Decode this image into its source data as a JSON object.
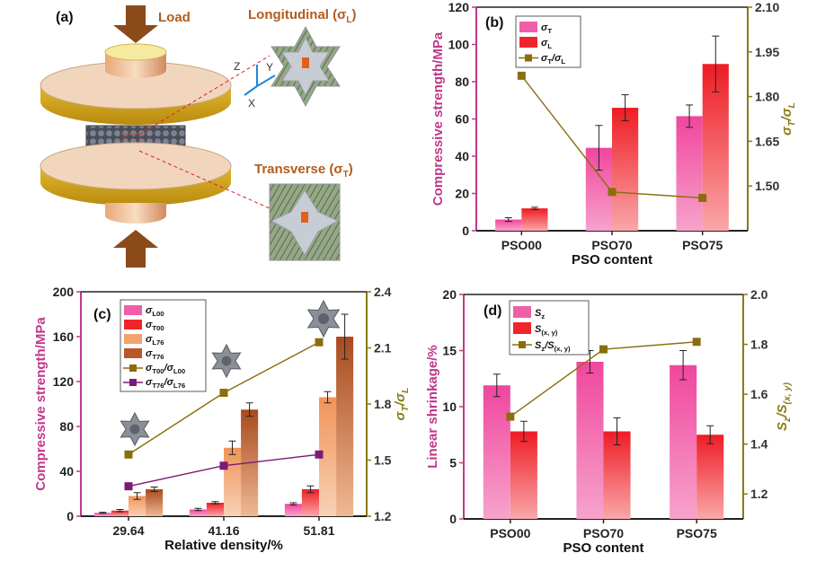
{
  "colors": {
    "magenta": "#c0388a",
    "olive": "#8a7a14",
    "pink_bar": "#ef5fa7",
    "red_bar": "#f1242c",
    "orange_bar": "#f3a36c",
    "brown_bar": "#b8582a",
    "marker_olive": "#8b6d0e",
    "marker_purple": "#7b1b78",
    "load_arrow": "#8a4a1a"
  },
  "panel_a": {
    "letter": "(a)",
    "load_label": "Load",
    "longitudinal_label": "Longitudinal (σ",
    "longitudinal_sub": "L",
    "transverse_label": "Transverse (σ",
    "transverse_sub": "T",
    "close_paren": ")",
    "axis_z": "Z",
    "axis_y": "Y",
    "axis_x": "X"
  },
  "chart_data": [
    {
      "id": "b",
      "letter": "(b)",
      "type": "bar",
      "categories": [
        "PSO00",
        "PSO70",
        "PSO75"
      ],
      "xlabel": "PSO content",
      "ylabel": "Compressive strength/MPa",
      "ylim": [
        0,
        120
      ],
      "yticks": [
        0,
        20,
        40,
        60,
        80,
        100,
        120
      ],
      "y2label_main": "σ",
      "y2label_sub1": "T",
      "y2label_sep": "/σ",
      "y2label_sub2": "L",
      "y2lim": [
        1.35,
        2.1
      ],
      "y2ticks": [
        "1.50",
        "1.65",
        "1.80",
        "1.95",
        "2.10"
      ],
      "y2tick_values": [
        1.5,
        1.65,
        1.8,
        1.95,
        2.1
      ],
      "series": [
        {
          "name": "σT",
          "label_main": "σ",
          "label_sub": "T",
          "values": [
            6,
            44.5,
            61.5
          ],
          "errors": [
            1,
            12,
            6
          ]
        },
        {
          "name": "σL",
          "label_main": "σ",
          "label_sub": "L",
          "values": [
            12,
            66,
            89.5
          ],
          "errors": [
            0.6,
            7,
            15
          ]
        }
      ],
      "line_series": {
        "name": "σT/σL",
        "label_main": "σ",
        "label_sub1": "T",
        "label_sep": "/σ",
        "label_sub2": "L",
        "values": [
          1.87,
          1.48,
          1.46
        ]
      }
    },
    {
      "id": "c",
      "letter": "(c)",
      "type": "bar",
      "categories": [
        "29.64",
        "41.16",
        "51.81"
      ],
      "xlabel": "Relative density/%",
      "ylabel": "Compressive strength/MPa",
      "ylim": [
        0,
        200
      ],
      "yticks": [
        0,
        40,
        80,
        120,
        160,
        200
      ],
      "y2label_main": "σ",
      "y2label_sub1": "T",
      "y2label_sep": "/σ",
      "y2label_sub2": "L",
      "y2lim": [
        1.2,
        2.4
      ],
      "y2ticks": [
        "1.2",
        "1.5",
        "1.8",
        "2.1",
        "2.4"
      ],
      "y2tick_values": [
        1.2,
        1.5,
        1.8,
        2.1,
        2.4
      ],
      "series": [
        {
          "name": "σL00",
          "label_main": "σ",
          "label_sub": "L00",
          "values": [
            3,
            6,
            11
          ],
          "errors": [
            0.5,
            1,
            1
          ]
        },
        {
          "name": "σT00",
          "label_main": "σ",
          "label_sub": "T00",
          "values": [
            5,
            12,
            24
          ],
          "errors": [
            1,
            1,
            3
          ]
        },
        {
          "name": "σL76",
          "label_main": "σ",
          "label_sub": "L76",
          "values": [
            18,
            61,
            106
          ],
          "errors": [
            3,
            6,
            5
          ]
        },
        {
          "name": "σT76",
          "label_main": "σ",
          "label_sub": "T76",
          "values": [
            24,
            95,
            160
          ],
          "errors": [
            2,
            6,
            20
          ]
        }
      ],
      "line_series": [
        {
          "name": "σT00/σL00",
          "label_main": "σ",
          "label_sub1": "T00",
          "label_sep": "/σ",
          "label_sub2": "L00",
          "values": [
            1.53,
            1.86,
            2.13
          ]
        },
        {
          "name": "σT76/σL76",
          "label_main": "σ",
          "label_sub1": "T76",
          "label_sep": "/σ",
          "label_sub2": "L76",
          "values": [
            1.36,
            1.47,
            1.53
          ]
        }
      ]
    },
    {
      "id": "d",
      "letter": "(d)",
      "type": "bar",
      "categories": [
        "PSO00",
        "PSO70",
        "PSO75"
      ],
      "xlabel": "PSO content",
      "ylabel": "Linear shrinkage/%",
      "ylim": [
        0,
        20
      ],
      "yticks": [
        0,
        5,
        10,
        15,
        20
      ],
      "y2label_main": "S",
      "y2label_sub1": "z",
      "y2label_sep": "/S",
      "y2label_sub2": "(x, y)",
      "y2lim": [
        1.1,
        2.0
      ],
      "y2ticks": [
        "1.2",
        "1.4",
        "1.6",
        "1.8",
        "2.0"
      ],
      "y2tick_values": [
        1.2,
        1.4,
        1.6,
        1.8,
        2.0
      ],
      "series": [
        {
          "name": "Sz",
          "label_main": "S",
          "label_sub": "z",
          "values": [
            11.9,
            14,
            13.7
          ],
          "errors": [
            1,
            1,
            1.3
          ]
        },
        {
          "name": "S(x, y)",
          "label_main": "S",
          "label_sub": "(x, y)",
          "values": [
            7.8,
            7.8,
            7.5
          ],
          "errors": [
            0.9,
            1.2,
            0.8
          ]
        }
      ],
      "line_series": {
        "name": "Sz/S(x, y)",
        "label_main": "S",
        "label_sub1": "z",
        "label_sep": "/S",
        "label_sub2": "(x, y)",
        "values": [
          1.51,
          1.78,
          1.81
        ]
      }
    }
  ]
}
